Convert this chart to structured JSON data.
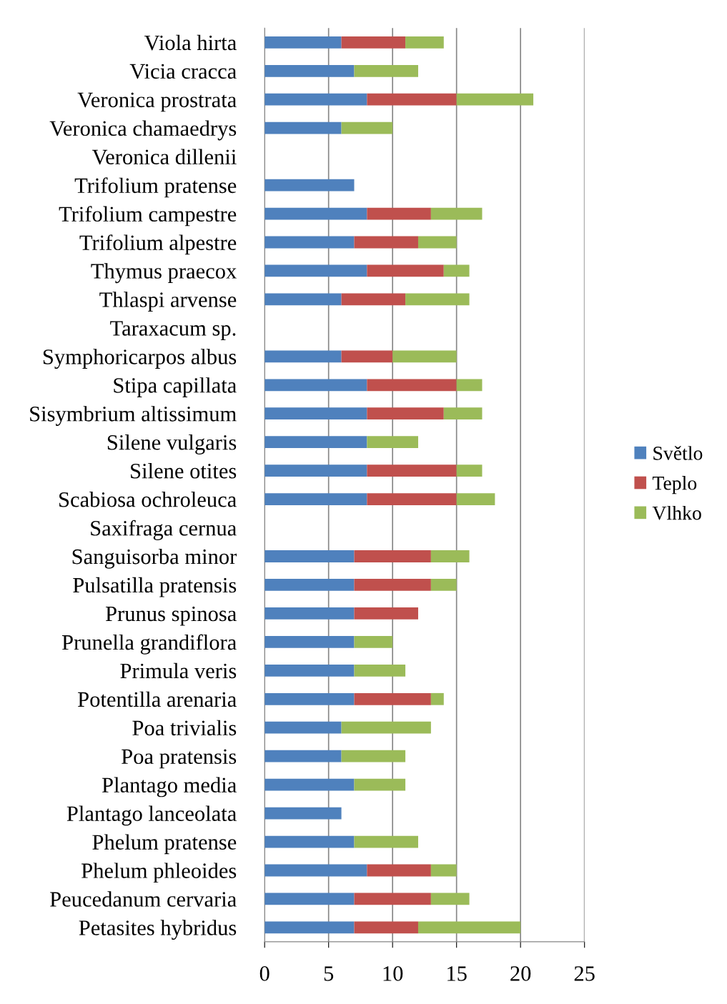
{
  "chart_data": {
    "type": "bar",
    "orientation": "horizontal",
    "stacked": true,
    "categories": [
      "Viola hirta",
      "Vicia cracca",
      "Veronica prostrata",
      "Veronica chamaedrys",
      "Veronica dillenii",
      "Trifolium pratense",
      "Trifolium campestre",
      "Trifolium alpestre",
      "Thymus praecox",
      "Thlaspi arvense",
      "Taraxacum sp.",
      "Symphoricarpos albus",
      "Stipa capillata",
      "Sisymbrium altissimum",
      "Silene vulgaris",
      "Silene otites",
      "Scabiosa ochroleuca",
      "Saxifraga cernua",
      "Sanguisorba minor",
      "Pulsatilla pratensis",
      "Prunus spinosa",
      "Prunella grandiflora",
      "Primula veris",
      "Potentilla arenaria",
      "Poa trivialis",
      "Poa pratensis",
      "Plantago media",
      "Plantago lanceolata",
      "Phelum pratense",
      "Phelum phleoides",
      "Peucedanum cervaria",
      "Petasites hybridus"
    ],
    "series": [
      {
        "name": "Světlo",
        "color": "#4f81bd",
        "values": [
          6,
          7,
          8,
          6,
          0,
          7,
          8,
          7,
          8,
          6,
          0,
          6,
          8,
          8,
          8,
          8,
          8,
          0,
          7,
          7,
          7,
          7,
          7,
          7,
          6,
          6,
          7,
          6,
          7,
          8,
          7,
          7
        ]
      },
      {
        "name": "Teplo",
        "color": "#c0504d",
        "values": [
          5,
          0,
          7,
          0,
          0,
          0,
          5,
          5,
          6,
          5,
          0,
          4,
          7,
          6,
          0,
          7,
          7,
          0,
          6,
          6,
          5,
          0,
          0,
          6,
          0,
          0,
          0,
          0,
          0,
          5,
          6,
          5
        ]
      },
      {
        "name": "Vlhko",
        "color": "#9bbb59",
        "values": [
          3,
          5,
          6,
          4,
          0,
          0,
          4,
          3,
          2,
          5,
          0,
          5,
          2,
          3,
          4,
          2,
          3,
          0,
          3,
          2,
          0,
          3,
          4,
          1,
          7,
          5,
          4,
          0,
          5,
          2,
          3,
          8
        ]
      }
    ],
    "xlim": [
      0,
      25
    ],
    "xticks": [
      0,
      5,
      10,
      15,
      20,
      25
    ],
    "grid": "x",
    "legend": "right"
  }
}
